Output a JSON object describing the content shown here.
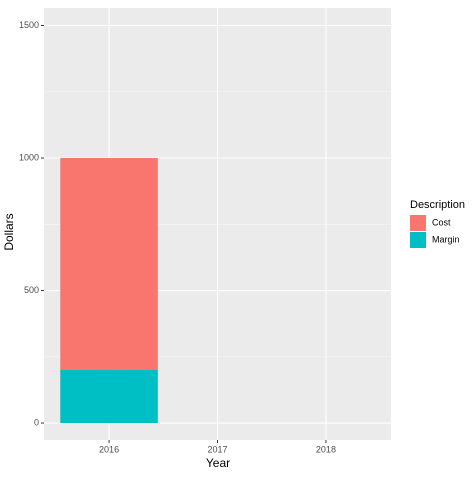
{
  "chart_data": {
    "type": "stacked_bar",
    "x_label": "Year",
    "y_label": "Dollars",
    "categories": [
      "2016",
      "2017",
      "2018"
    ],
    "series": [
      {
        "name": "Cost",
        "color": "#f8766d",
        "values": [
          800,
          null,
          null
        ]
      },
      {
        "name": "Margin",
        "color": "#00bfc4",
        "values": [
          200,
          null,
          null
        ]
      }
    ],
    "legend_title": "Description",
    "ylim": [
      -64,
      1566
    ],
    "yticks": [
      0,
      500,
      1000,
      1500
    ],
    "grid": true,
    "legend_position": "right"
  }
}
